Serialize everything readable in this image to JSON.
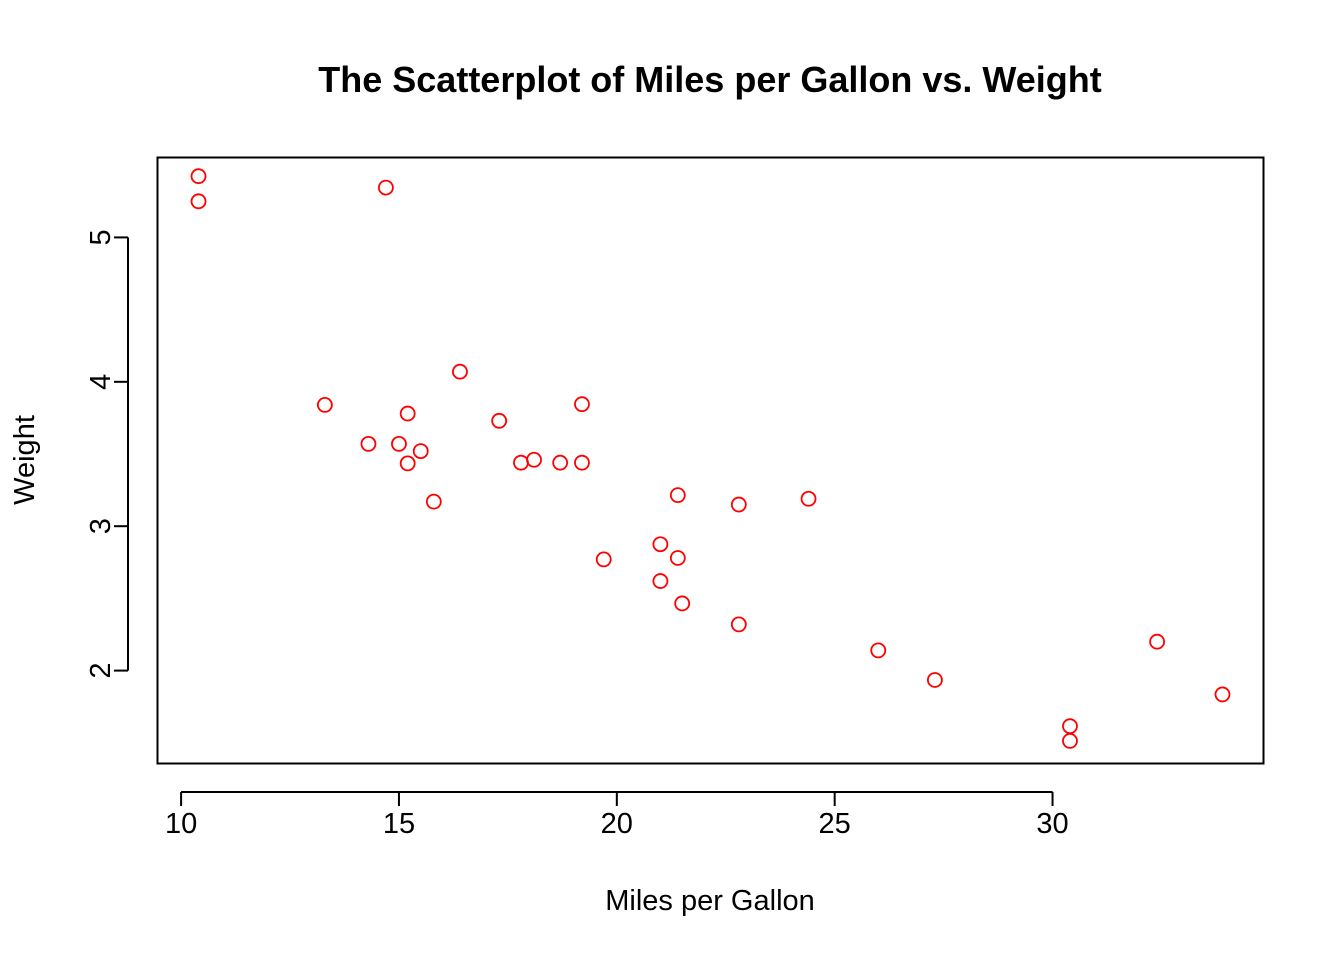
{
  "chart_data": {
    "type": "scatter",
    "title": "The Scatterplot of Miles per Gallon vs. Weight",
    "xlabel": "Miles per Gallon",
    "ylabel": "Weight",
    "xlim": [
      9.47,
      34.83
    ],
    "ylim": [
      1.36,
      5.55
    ],
    "xticks": [
      10,
      15,
      20,
      25,
      30
    ],
    "yticks": [
      2,
      3,
      4,
      5
    ],
    "xtick_labels": [
      "10",
      "15",
      "20",
      "25",
      "30"
    ],
    "ytick_labels": [
      "2",
      "3",
      "4",
      "5"
    ],
    "grid": false,
    "point_color": "#ff0000",
    "point_style": "hollow-circle",
    "points": [
      {
        "x": 21.0,
        "y": 2.62
      },
      {
        "x": 21.0,
        "y": 2.875
      },
      {
        "x": 22.8,
        "y": 2.32
      },
      {
        "x": 21.4,
        "y": 3.215
      },
      {
        "x": 18.7,
        "y": 3.44
      },
      {
        "x": 18.1,
        "y": 3.46
      },
      {
        "x": 14.3,
        "y": 3.57
      },
      {
        "x": 24.4,
        "y": 3.19
      },
      {
        "x": 22.8,
        "y": 3.15
      },
      {
        "x": 19.2,
        "y": 3.44
      },
      {
        "x": 17.8,
        "y": 3.44
      },
      {
        "x": 16.4,
        "y": 4.07
      },
      {
        "x": 17.3,
        "y": 3.73
      },
      {
        "x": 15.2,
        "y": 3.78
      },
      {
        "x": 10.4,
        "y": 5.25
      },
      {
        "x": 10.4,
        "y": 5.424
      },
      {
        "x": 14.7,
        "y": 5.345
      },
      {
        "x": 32.4,
        "y": 2.2
      },
      {
        "x": 30.4,
        "y": 1.615
      },
      {
        "x": 33.9,
        "y": 1.835
      },
      {
        "x": 21.5,
        "y": 2.465
      },
      {
        "x": 15.5,
        "y": 3.52
      },
      {
        "x": 15.2,
        "y": 3.435
      },
      {
        "x": 13.3,
        "y": 3.84
      },
      {
        "x": 19.2,
        "y": 3.845
      },
      {
        "x": 27.3,
        "y": 1.935
      },
      {
        "x": 26.0,
        "y": 2.14
      },
      {
        "x": 30.4,
        "y": 1.513
      },
      {
        "x": 15.8,
        "y": 3.17
      },
      {
        "x": 19.7,
        "y": 2.77
      },
      {
        "x": 15.0,
        "y": 3.57
      },
      {
        "x": 21.4,
        "y": 2.78
      }
    ]
  }
}
